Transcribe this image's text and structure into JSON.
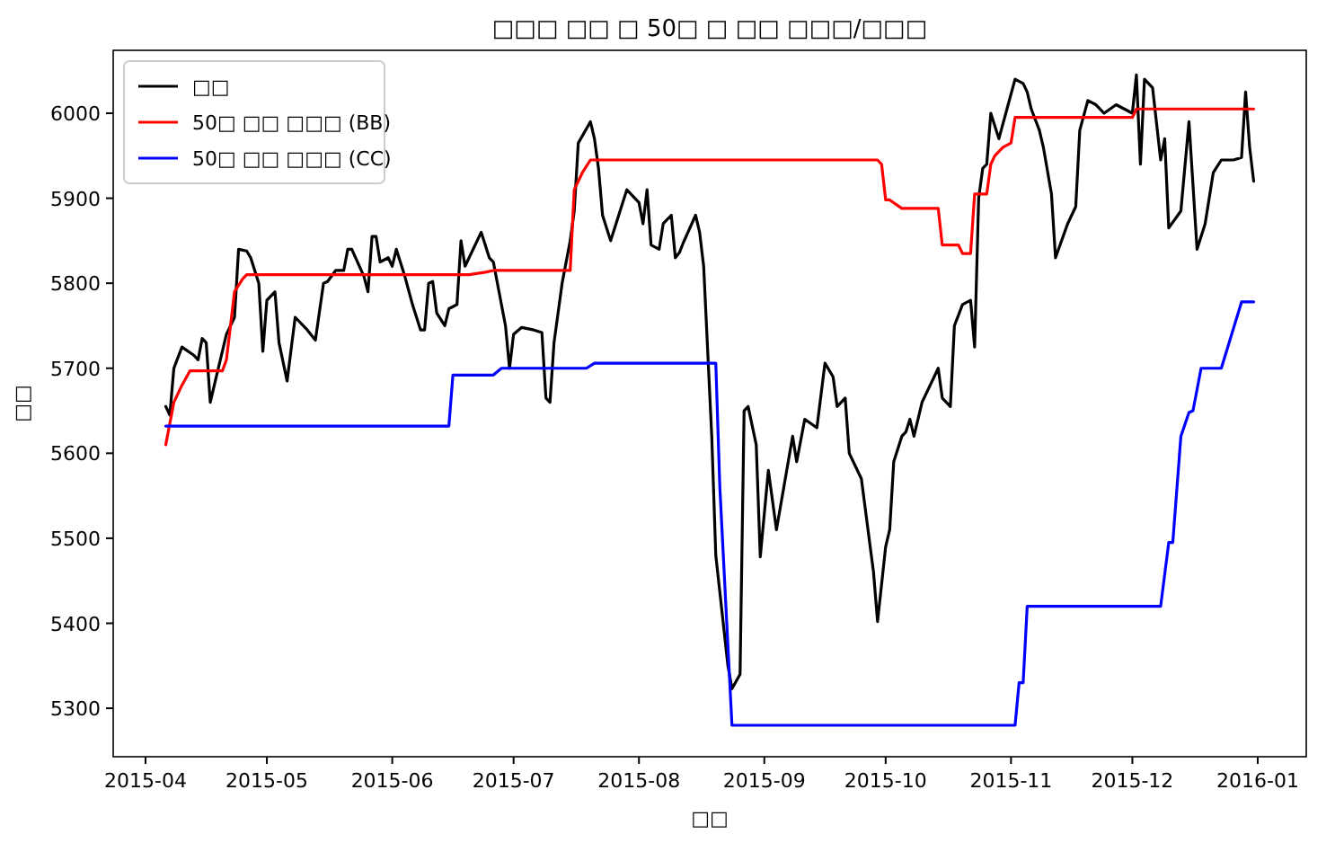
{
  "chart_data": {
    "type": "line",
    "title": "□□□ □□ □ 50□ □ □□ □□□/□□□",
    "xlabel": "□□",
    "ylabel": "□□",
    "xlim": [
      "2015-03-24",
      "2016-01-13"
    ],
    "ylim": [
      5243,
      6074
    ],
    "xticks": [
      {
        "value": "2015-04-01",
        "label": "2015-04"
      },
      {
        "value": "2015-05-01",
        "label": "2015-05"
      },
      {
        "value": "2015-06-01",
        "label": "2015-06"
      },
      {
        "value": "2015-07-01",
        "label": "2015-07"
      },
      {
        "value": "2015-08-01",
        "label": "2015-08"
      },
      {
        "value": "2015-09-01",
        "label": "2015-09"
      },
      {
        "value": "2015-10-01",
        "label": "2015-10"
      },
      {
        "value": "2015-11-01",
        "label": "2015-11"
      },
      {
        "value": "2015-12-01",
        "label": "2015-12"
      },
      {
        "value": "2016-01-01",
        "label": "2016-01"
      }
    ],
    "yticks": [
      5300,
      5400,
      5500,
      5600,
      5700,
      5800,
      5900,
      6000
    ],
    "grid": false,
    "legend": "top left",
    "marker": "none",
    "line_style": "solid",
    "series": [
      {
        "name": "□□",
        "color": "#000000",
        "x": [
          "2015-04-06",
          "2015-04-07",
          "2015-04-08",
          "2015-04-10",
          "2015-04-13",
          "2015-04-14",
          "2015-04-15",
          "2015-04-16",
          "2015-04-17",
          "2015-04-18",
          "2015-04-21",
          "2015-04-23",
          "2015-04-24",
          "2015-04-26",
          "2015-04-27",
          "2015-04-29",
          "2015-04-30",
          "2015-05-01",
          "2015-05-03",
          "2015-05-04",
          "2015-05-06",
          "2015-05-08",
          "2015-05-11",
          "2015-05-13",
          "2015-05-15",
          "2015-05-16",
          "2015-05-18",
          "2015-05-20",
          "2015-05-21",
          "2015-05-22",
          "2015-05-25",
          "2015-05-26",
          "2015-05-27",
          "2015-05-28",
          "2015-05-29",
          "2015-05-31",
          "2015-06-01",
          "2015-06-02",
          "2015-06-04",
          "2015-06-06",
          "2015-06-08",
          "2015-06-09",
          "2015-06-10",
          "2015-06-11",
          "2015-06-12",
          "2015-06-14",
          "2015-06-15",
          "2015-06-17",
          "2015-06-18",
          "2015-06-19",
          "2015-06-23",
          "2015-06-25",
          "2015-06-26",
          "2015-06-29",
          "2015-06-30",
          "2015-07-01",
          "2015-07-03",
          "2015-07-06",
          "2015-07-08",
          "2015-07-09",
          "2015-07-10",
          "2015-07-11",
          "2015-07-13",
          "2015-07-15",
          "2015-07-16",
          "2015-07-17",
          "2015-07-20",
          "2015-07-21",
          "2015-07-22",
          "2015-07-23",
          "2015-07-25",
          "2015-07-27",
          "2015-07-29",
          "2015-07-31",
          "2015-08-01",
          "2015-08-02",
          "2015-08-03",
          "2015-08-04",
          "2015-08-06",
          "2015-08-07",
          "2015-08-09",
          "2015-08-10",
          "2015-08-11",
          "2015-08-12",
          "2015-08-15",
          "2015-08-16",
          "2015-08-17",
          "2015-08-19",
          "2015-08-20",
          "2015-08-23",
          "2015-08-24",
          "2015-08-26",
          "2015-08-27",
          "2015-08-28",
          "2015-08-30",
          "2015-08-31",
          "2015-09-02",
          "2015-09-04",
          "2015-09-08",
          "2015-09-09",
          "2015-09-11",
          "2015-09-14",
          "2015-09-16",
          "2015-09-18",
          "2015-09-19",
          "2015-09-21",
          "2015-09-22",
          "2015-09-25",
          "2015-09-28",
          "2015-09-29",
          "2015-10-01",
          "2015-10-02",
          "2015-10-03",
          "2015-10-05",
          "2015-10-06",
          "2015-10-07",
          "2015-10-08",
          "2015-10-10",
          "2015-10-13",
          "2015-10-14",
          "2015-10-15",
          "2015-10-17",
          "2015-10-18",
          "2015-10-20",
          "2015-10-22",
          "2015-10-23",
          "2015-10-24",
          "2015-10-25",
          "2015-10-26",
          "2015-10-27",
          "2015-10-29",
          "2015-10-31",
          "2015-11-02",
          "2015-11-04",
          "2015-11-05",
          "2015-11-06",
          "2015-11-08",
          "2015-11-09",
          "2015-11-11",
          "2015-11-12",
          "2015-11-15",
          "2015-11-17",
          "2015-11-18",
          "2015-11-20",
          "2015-11-22",
          "2015-11-24",
          "2015-11-27",
          "2015-11-29",
          "2015-12-01",
          "2015-12-02",
          "2015-12-03",
          "2015-12-04",
          "2015-12-06",
          "2015-12-08",
          "2015-12-09",
          "2015-12-10",
          "2015-12-13",
          "2015-12-15",
          "2015-12-17",
          "2015-12-19",
          "2015-12-21",
          "2015-12-23",
          "2015-12-26",
          "2015-12-28",
          "2015-12-29",
          "2015-12-30",
          "2015-12-31"
        ],
        "values": [
          5655,
          5645,
          5700,
          5725,
          5715,
          5710,
          5735,
          5730,
          5660,
          5680,
          5740,
          5760,
          5840,
          5838,
          5830,
          5800,
          5720,
          5780,
          5790,
          5730,
          5685,
          5760,
          5745,
          5733,
          5800,
          5802,
          5815,
          5815,
          5840,
          5840,
          5808,
          5790,
          5855,
          5855,
          5825,
          5830,
          5820,
          5840,
          5810,
          5775,
          5745,
          5745,
          5800,
          5802,
          5765,
          5750,
          5770,
          5775,
          5850,
          5820,
          5860,
          5830,
          5825,
          5750,
          5700,
          5740,
          5748,
          5745,
          5742,
          5665,
          5660,
          5730,
          5800,
          5850,
          5885,
          5965,
          5990,
          5970,
          5935,
          5880,
          5850,
          5880,
          5910,
          5900,
          5895,
          5870,
          5910,
          5845,
          5840,
          5870,
          5880,
          5830,
          5836,
          5848,
          5880,
          5860,
          5820,
          5620,
          5480,
          5350,
          5323,
          5340,
          5650,
          5655,
          5610,
          5478,
          5580,
          5510,
          5620,
          5590,
          5640,
          5630,
          5706,
          5690,
          5655,
          5665,
          5600,
          5570,
          5460,
          5402,
          5490,
          5510,
          5590,
          5620,
          5625,
          5640,
          5620,
          5660,
          5690,
          5700,
          5665,
          5655,
          5750,
          5775,
          5780,
          5725,
          5900,
          5935,
          5940,
          6000,
          5970,
          6005,
          6040,
          6035,
          6025,
          6005,
          5980,
          5960,
          5905,
          5830,
          5870,
          5890,
          5980,
          6015,
          6010,
          6000,
          6010,
          6005,
          6000,
          6045,
          5940,
          6040,
          6030,
          5945,
          5970,
          5865,
          5885,
          5990,
          5840,
          5870,
          5930,
          5945,
          5945,
          5948,
          6025,
          5960,
          5920
        ]
      },
      {
        "name": "50□ □□ □□□ (BB)",
        "color": "#ff0000",
        "x": [
          "2015-04-06",
          "2015-04-08",
          "2015-04-10",
          "2015-04-12",
          "2015-04-20",
          "2015-04-21",
          "2015-04-23",
          "2015-04-25",
          "2015-04-26",
          "2015-06-20",
          "2015-06-24",
          "2015-06-26",
          "2015-07-15",
          "2015-07-16",
          "2015-07-18",
          "2015-07-20",
          "2015-09-29",
          "2015-09-30",
          "2015-10-01",
          "2015-10-02",
          "2015-10-05",
          "2015-10-14",
          "2015-10-15",
          "2015-10-19",
          "2015-10-20",
          "2015-10-22",
          "2015-10-23",
          "2015-10-26",
          "2015-10-27",
          "2015-10-28",
          "2015-10-30",
          "2015-11-01",
          "2015-11-02",
          "2015-12-01",
          "2015-12-02",
          "2015-12-31"
        ],
        "values": [
          5610,
          5660,
          5680,
          5697,
          5697,
          5710,
          5790,
          5805,
          5810,
          5810,
          5813,
          5815,
          5815,
          5910,
          5930,
          5945,
          5945,
          5940,
          5898,
          5898,
          5888,
          5888,
          5845,
          5845,
          5835,
          5835,
          5905,
          5905,
          5940,
          5950,
          5960,
          5965,
          5995,
          5995,
          6005,
          6005
        ]
      },
      {
        "name": "50□ □□ □□□ (CC)",
        "color": "#0000ff",
        "x": [
          "2015-04-06",
          "2015-06-15",
          "2015-06-16",
          "2015-06-26",
          "2015-06-28",
          "2015-07-19",
          "2015-07-21",
          "2015-08-20",
          "2015-08-21",
          "2015-08-24",
          "2015-11-02",
          "2015-11-03",
          "2015-11-04",
          "2015-11-05",
          "2015-12-08",
          "2015-12-10",
          "2015-12-11",
          "2015-12-13",
          "2015-12-15",
          "2015-12-16",
          "2015-12-18",
          "2015-12-23",
          "2015-12-28",
          "2015-12-31"
        ],
        "values": [
          5632,
          5632,
          5692,
          5692,
          5700,
          5700,
          5706,
          5706,
          5560,
          5280,
          5280,
          5330,
          5330,
          5420,
          5420,
          5495,
          5495,
          5620,
          5648,
          5650,
          5700,
          5700,
          5778,
          5778
        ]
      }
    ]
  }
}
